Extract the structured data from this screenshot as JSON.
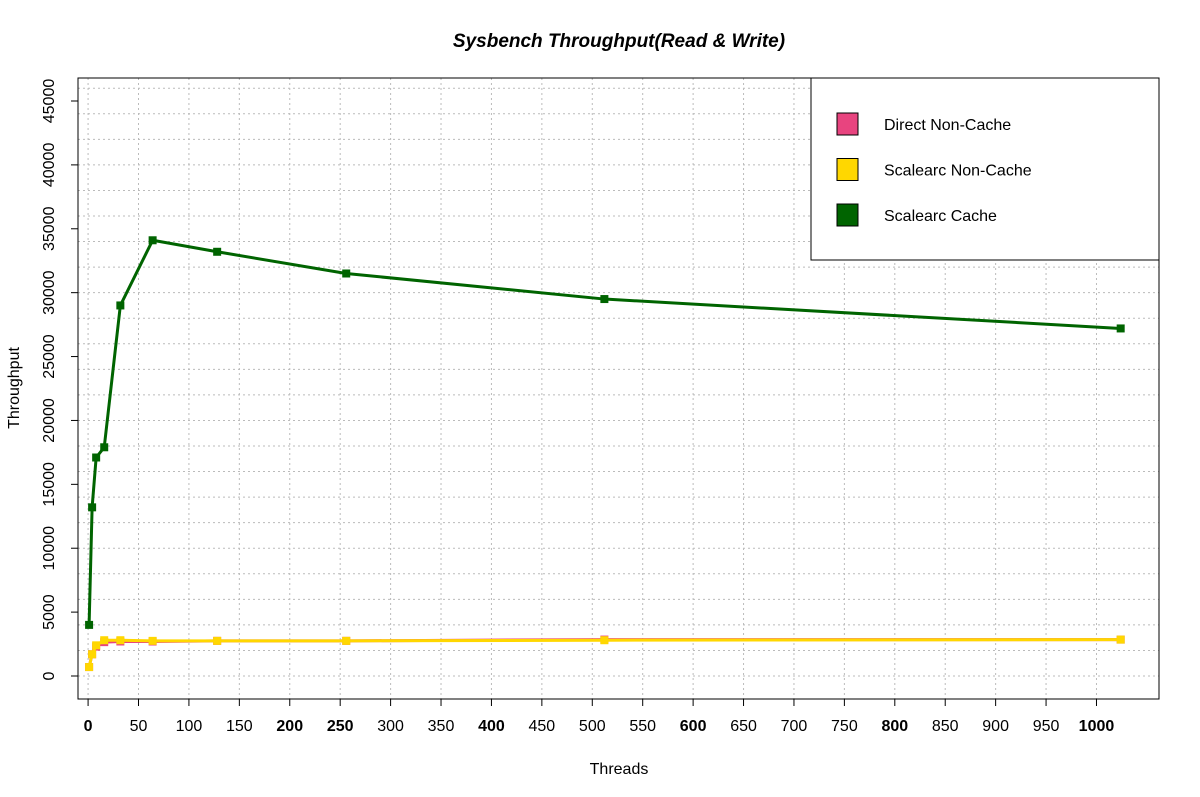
{
  "chart_data": {
    "type": "line",
    "title": "Sysbench Throughput(Read & Write)",
    "xlabel": "Threads",
    "ylabel": "Throughput",
    "xlim": [
      -10,
      1062
    ],
    "ylim": [
      -1800,
      46800
    ],
    "x_ticks": [
      0,
      50,
      100,
      150,
      200,
      250,
      300,
      350,
      400,
      450,
      500,
      550,
      600,
      650,
      700,
      750,
      800,
      850,
      900,
      950,
      1000
    ],
    "x_ticks_bold": [
      0,
      200,
      250,
      400,
      600,
      800,
      1000
    ],
    "y_ticks": [
      0,
      5000,
      10000,
      15000,
      20000,
      25000,
      30000,
      35000,
      40000,
      45000
    ],
    "y_minor_grid_step": 2000,
    "grid": true,
    "legend": {
      "position": "top-right",
      "entries": [
        "Direct Non-Cache",
        "Scalearc Non-Cache",
        "Scalearc Cache"
      ]
    },
    "series": [
      {
        "name": "Direct Non-Cache",
        "color": "#e8447f",
        "x": [
          1,
          4,
          8,
          16,
          32,
          64,
          128,
          256,
          512,
          1024
        ],
        "values": [
          700,
          1700,
          2300,
          2650,
          2700,
          2700,
          2750,
          2750,
          2850,
          2850
        ]
      },
      {
        "name": "Scalearc Non-Cache",
        "color": "#ffd700",
        "x": [
          1,
          4,
          8,
          16,
          32,
          64,
          128,
          256,
          512,
          1024
        ],
        "values": [
          700,
          1700,
          2400,
          2800,
          2800,
          2750,
          2750,
          2750,
          2800,
          2850
        ]
      },
      {
        "name": "Scalearc Cache",
        "color": "#006400",
        "x": [
          1,
          4,
          8,
          16,
          32,
          64,
          128,
          256,
          512,
          1024
        ],
        "values": [
          4000,
          13200,
          17100,
          17900,
          29000,
          34100,
          33200,
          31500,
          29500,
          27200
        ]
      }
    ]
  }
}
